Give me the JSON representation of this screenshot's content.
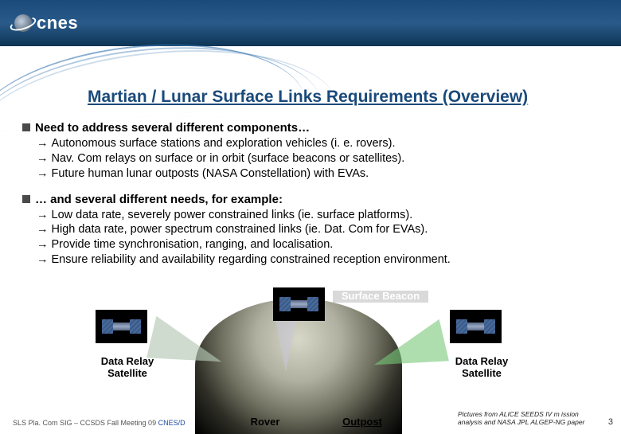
{
  "logo_text": "cnes",
  "title": "Martian / Lunar Surface Links Requirements (Overview)",
  "section1": {
    "heading": "Need to address several different components…",
    "items": [
      "Autonomous surface stations and exploration vehicles (i. e. rovers).",
      "Nav. Com relays on surface or in orbit (surface beacons or satellites).",
      "Future human lunar outposts (NASA Constellation) with EVAs."
    ]
  },
  "section2": {
    "heading": "… and several different needs, for example:",
    "items": [
      "Low data rate, severely power constrained links (ie. surface platforms).",
      "High data rate, power spectrum constrained links (ie. Dat. Com for EVAs).",
      "Provide time synchronisation, ranging, and localisation.",
      "Ensure reliability and availability regarding constrained reception environment."
    ]
  },
  "diagram": {
    "beacon": "Surface Beacon",
    "relay_left": "Data Relay Satellite",
    "relay_right": "Data Relay Satellite",
    "rover": "Rover",
    "outpost": "Outpost"
  },
  "footer": {
    "left_a": "SLS Pla. Com SIG – CCSDS Fall Meeting 09 ",
    "left_b": " CNES/D",
    "credit": "Pictures from ALICE SEEDS IV m ission analysis and NASA JPL ALGEP-NG paper"
  },
  "page_number": "3",
  "colors": {
    "header_gradient_top": "#1a4a7a",
    "title_color": "#1a4a7a"
  }
}
